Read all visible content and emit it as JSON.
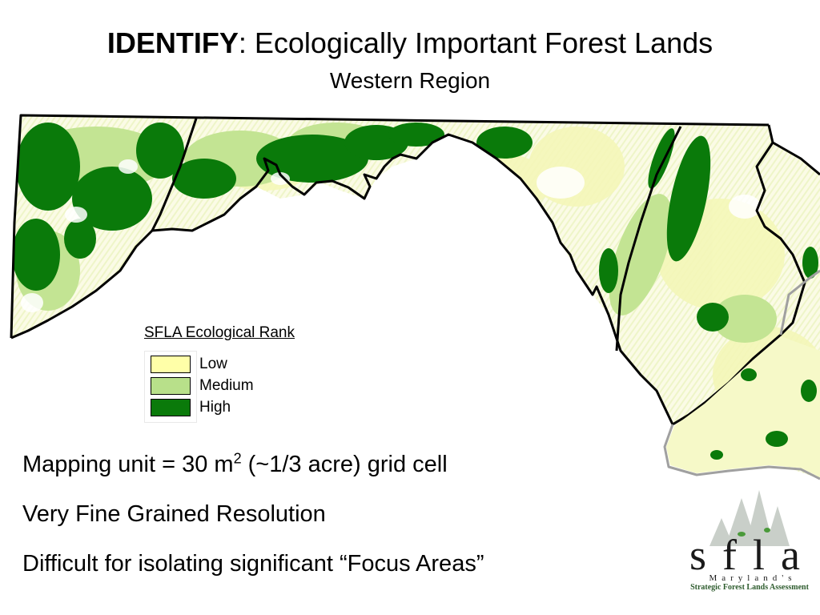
{
  "slide": {
    "title_bold": "IDENTIFY",
    "title_rest": ":  Ecologically Important Forest Lands",
    "subtitle": "Western Region"
  },
  "legend": {
    "title": "SFLA Ecological Rank",
    "items": [
      {
        "label": "Low",
        "color": "#ffffa8"
      },
      {
        "label": "Medium",
        "color": "#b8e08a"
      },
      {
        "label": "High",
        "color": "#0a7a0a"
      }
    ]
  },
  "bullets": {
    "unit_prefix": "Mapping unit = 30 m",
    "unit_sup": "2",
    "unit_suffix": " (~1/3 acre) grid cell",
    "resolution": "Very Fine Grained Resolution",
    "difficulty": "Difficult for isolating significant “Focus Areas”"
  },
  "logo": {
    "letters": "sfla",
    "state": "Maryland's",
    "name": "Strategic Forest Lands Assessment"
  }
}
